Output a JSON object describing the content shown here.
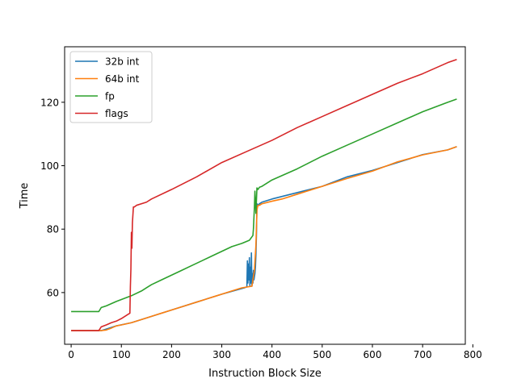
{
  "chart_data": {
    "type": "line",
    "title": "",
    "xlabel": "Instruction Block Size",
    "ylabel": "Time",
    "xlim": [
      -13,
      785
    ],
    "ylim": [
      43.7,
      137.5
    ],
    "xticks": [
      0,
      100,
      200,
      300,
      400,
      500,
      600,
      700,
      800
    ],
    "yticks": [
      60,
      80,
      100,
      120
    ],
    "grid": false,
    "legend_position": "top-left",
    "series": [
      {
        "name": "32b int",
        "color": "#1f77b4",
        "x": [
          0,
          60,
          70,
          90,
          120,
          150,
          200,
          250,
          300,
          345,
          350,
          351,
          352,
          353,
          354,
          355,
          356,
          357,
          358,
          359,
          360,
          361,
          362,
          363,
          364,
          365,
          366,
          367,
          368,
          369,
          370,
          372,
          375,
          380,
          400,
          450,
          500,
          550,
          600,
          650,
          700,
          750,
          768
        ],
        "y": [
          48,
          48,
          48.5,
          49.5,
          50.5,
          52,
          54.5,
          57,
          59.5,
          61.5,
          61.8,
          70,
          63,
          69,
          64,
          71,
          62,
          68,
          63,
          72.5,
          62,
          66,
          63,
          67,
          64,
          65,
          66,
          68,
          72,
          78,
          88,
          87.5,
          88,
          88.5,
          89.5,
          91.5,
          93.5,
          96.5,
          98.5,
          101,
          103.5,
          105,
          106
        ]
      },
      {
        "name": "64b int",
        "color": "#ff7f0e",
        "x": [
          0,
          60,
          70,
          80,
          90,
          100,
          120,
          150,
          170,
          180,
          200,
          220,
          240,
          250,
          270,
          290,
          300,
          320,
          340,
          360,
          365,
          368,
          370,
          372,
          375,
          380,
          400,
          420,
          450,
          500,
          550,
          600,
          650,
          700,
          750,
          768
        ],
        "y": [
          48,
          48,
          48.2,
          48.8,
          49.5,
          49.8,
          50.5,
          52,
          53,
          53.5,
          54.5,
          55.5,
          56.5,
          57,
          58,
          59,
          59.5,
          60.5,
          61.5,
          62,
          67,
          75,
          86,
          87.5,
          87.5,
          88,
          88.8,
          89.5,
          91,
          93.5,
          96,
          98.3,
          101.2,
          103.4,
          105,
          106
        ]
      },
      {
        "name": "fp",
        "color": "#2ca02c",
        "x": [
          0,
          55,
          60,
          70,
          80,
          90,
          100,
          120,
          140,
          150,
          160,
          180,
          200,
          220,
          240,
          260,
          280,
          300,
          320,
          340,
          355,
          362,
          363,
          365,
          366,
          368,
          370,
          372,
          375,
          380,
          400,
          450,
          500,
          550,
          600,
          650,
          700,
          750,
          768
        ],
        "y": [
          54,
          54,
          55.3,
          55.8,
          56.5,
          57.2,
          57.8,
          59,
          60.5,
          61.5,
          62.5,
          64,
          65.5,
          67,
          68.5,
          70,
          71.5,
          73,
          74.5,
          75.5,
          76.5,
          78,
          80,
          87,
          92,
          85,
          93,
          92.5,
          93.2,
          93.5,
          95.5,
          99,
          103,
          106.5,
          110,
          113.5,
          117,
          120,
          121
        ]
      },
      {
        "name": "flags",
        "color": "#d62728",
        "x": [
          0,
          55,
          60,
          70,
          80,
          90,
          100,
          110,
          117,
          118,
          119,
          120,
          121,
          122,
          124,
          126,
          130,
          150,
          160,
          200,
          250,
          300,
          350,
          400,
          450,
          500,
          550,
          600,
          650,
          700,
          750,
          768
        ],
        "y": [
          48,
          48,
          49.2,
          49.8,
          50.5,
          51,
          51.8,
          52.8,
          53.5,
          62,
          67.5,
          79,
          74,
          82,
          87,
          87,
          87.5,
          88.5,
          89.5,
          92.5,
          96.5,
          101,
          104.5,
          108,
          112,
          115.5,
          119,
          122.5,
          126,
          129,
          132.5,
          133.5
        ]
      }
    ]
  }
}
